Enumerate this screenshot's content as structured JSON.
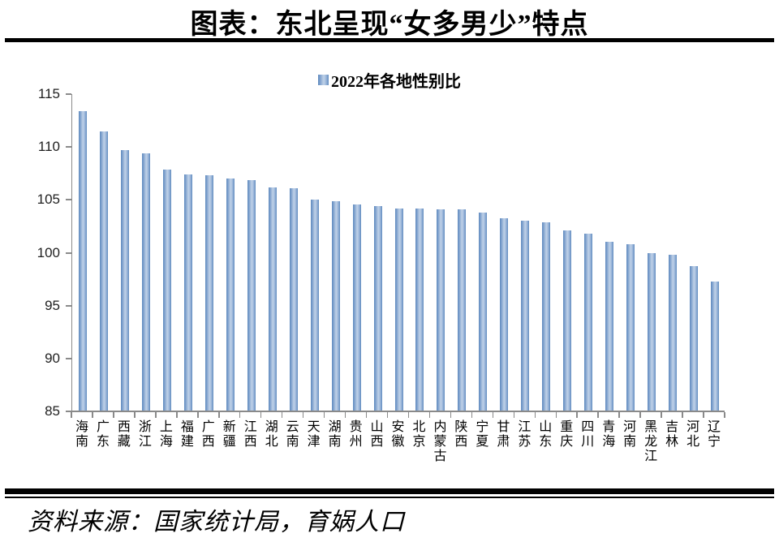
{
  "title": "图表：东北呈现“女多男少”特点",
  "footer": {
    "source_label": "资料来源：国家统计局，育娲人口"
  },
  "chart_data": {
    "type": "bar",
    "title": "2022年各地性别比",
    "legend_position": "top",
    "grid": false,
    "ylim": [
      85,
      115
    ],
    "yticks": [
      85,
      90,
      95,
      100,
      105,
      110,
      115
    ],
    "categories": [
      "海南",
      "广东",
      "西藏",
      "浙江",
      "上海",
      "福建",
      "广西",
      "新疆",
      "江西",
      "湖北",
      "云南",
      "天津",
      "湖南",
      "贵州",
      "山西",
      "安徽",
      "北京",
      "内蒙古",
      "陕西",
      "宁夏",
      "甘肃",
      "江苏",
      "山东",
      "重庆",
      "四川",
      "青海",
      "河南",
      "黑龙江",
      "吉林",
      "河北",
      "辽宁"
    ],
    "values": [
      113.4,
      111.5,
      109.7,
      109.4,
      107.9,
      107.4,
      107.3,
      107.0,
      106.9,
      106.2,
      106.1,
      105.0,
      104.9,
      104.6,
      104.4,
      104.2,
      104.2,
      104.1,
      104.1,
      103.8,
      103.3,
      103.0,
      102.9,
      102.1,
      101.8,
      101.0,
      100.8,
      100.0,
      99.8,
      98.7,
      97.3
    ],
    "colors": {
      "bar_edge": "#5f8abe",
      "bar_center": "#bed0e8",
      "axis": "#8a8a8a",
      "text": "#000000"
    }
  }
}
